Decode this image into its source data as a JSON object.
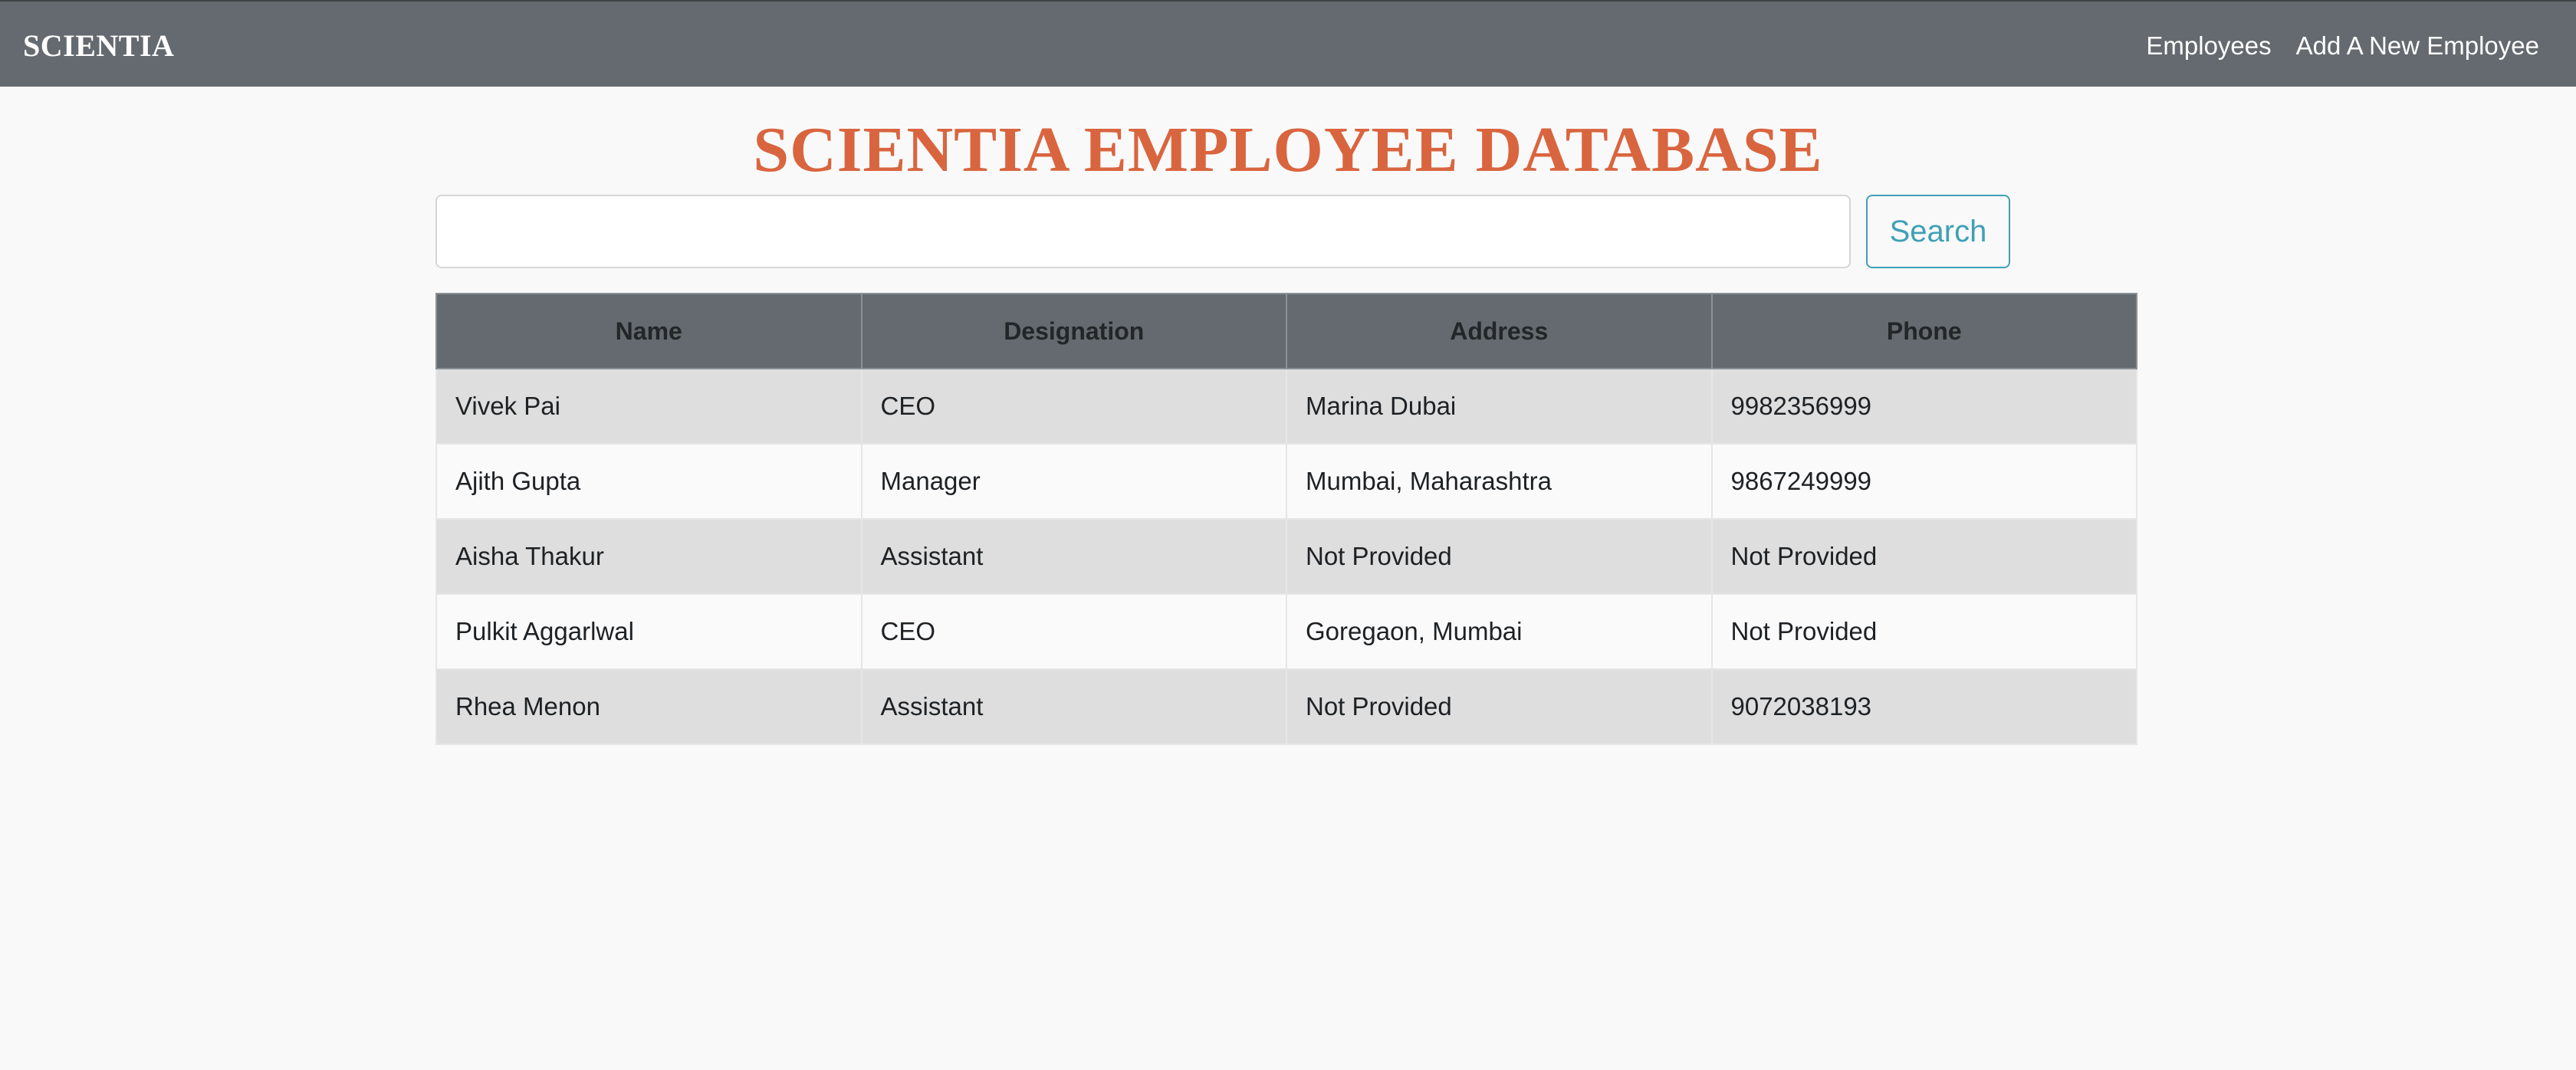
{
  "navbar": {
    "brand": "SCIENTIA",
    "links": [
      {
        "label": "Employees"
      },
      {
        "label": "Add A New Employee"
      }
    ]
  },
  "page": {
    "title": "SCIENTIA EMPLOYEE DATABASE"
  },
  "search": {
    "value": "",
    "placeholder": "",
    "button_label": "Search"
  },
  "table": {
    "columns": [
      "Name",
      "Designation",
      "Address",
      "Phone"
    ],
    "rows": [
      [
        "Vivek Pai",
        "CEO",
        "Marina Dubai",
        "9982356999"
      ],
      [
        "Ajith Gupta",
        "Manager",
        "Mumbai, Maharashtra",
        "9867249999"
      ],
      [
        "Aisha Thakur",
        "Assistant",
        "Not Provided",
        "Not Provided"
      ],
      [
        "Pulkit Aggarlwal",
        "CEO",
        "Goregaon, Mumbai",
        "Not Provided"
      ],
      [
        "Rhea Menon",
        "Assistant",
        "Not Provided",
        "9072038193"
      ]
    ]
  },
  "colors": {
    "navbar_bg": "#646a6f",
    "title": "#d9653f",
    "search_button": "#3fa0b6",
    "row_odd": "#dedede",
    "row_even": "#fafafa"
  }
}
